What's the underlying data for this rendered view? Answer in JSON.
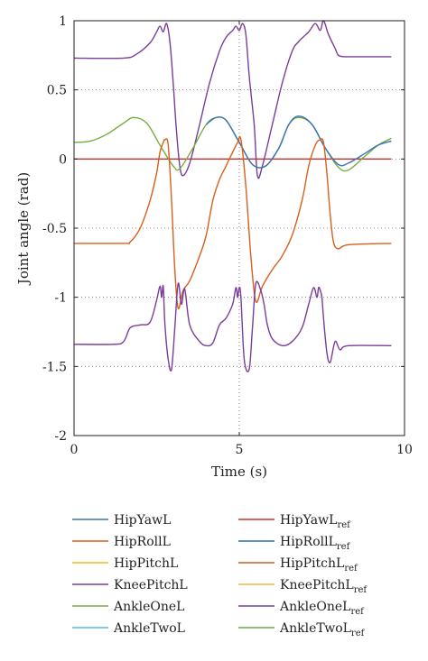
{
  "chart_data": {
    "type": "line",
    "title": "",
    "xlabel": "Time (s)",
    "ylabel": "Joint angle (rad)",
    "xlim": [
      0,
      10
    ],
    "ylim": [
      -2,
      1
    ],
    "xticks": [
      0,
      5,
      10
    ],
    "xtick_labels": [
      "0",
      "5",
      "10"
    ],
    "yticks": [
      1,
      0.5,
      0,
      -0.5,
      -1,
      -1.5,
      -2
    ],
    "ytick_labels": [
      "1",
      "0.5",
      "0",
      "-0.5",
      "-1",
      "-1.5",
      "-2"
    ],
    "grid": "dotted at y-ticks and x = 5",
    "legend_placement": "below plot, two columns",
    "legend": [
      {
        "base": "HipYawL",
        "sub": "",
        "color": "#3b73b9"
      },
      {
        "base": "HipRollL",
        "sub": "",
        "color": "#d95f1a"
      },
      {
        "base": "HipPitchL",
        "sub": "",
        "color": "#efb52f"
      },
      {
        "base": "KneePitchL",
        "sub": "",
        "color": "#7a3d9a"
      },
      {
        "base": "AnkleOneL",
        "sub": "",
        "color": "#77ac3e"
      },
      {
        "base": "AnkleTwoL",
        "sub": "",
        "color": "#5cb8e6"
      },
      {
        "base": "HipYawL",
        "sub": "ref",
        "color": "#c9302c"
      },
      {
        "base": "HipRollL",
        "sub": "ref",
        "color": "#2a6db5"
      },
      {
        "base": "HipPitchL",
        "sub": "ref",
        "color": "#c2611e"
      },
      {
        "base": "KneePitchL",
        "sub": "ref",
        "color": "#f0b73a"
      },
      {
        "base": "AnkleOneL",
        "sub": "ref",
        "color": "#7a3d9a"
      },
      {
        "base": "AnkleTwoL",
        "sub": "ref",
        "color": "#6aaa4a"
      }
    ],
    "series": [
      {
        "legend_index": 6,
        "x": [
          0,
          9.6
        ],
        "y": [
          0,
          0
        ]
      },
      {
        "legend_index": 3,
        "x": [
          0,
          1.5,
          1.9,
          2.3,
          2.5,
          2.6,
          2.7,
          2.8,
          2.9,
          3.0,
          3.1,
          3.2,
          3.3,
          3.5,
          3.8,
          4.1,
          4.4,
          4.6,
          4.8,
          4.9,
          5.0,
          5.1,
          5.2,
          5.3,
          5.45,
          5.55,
          5.7,
          6.0,
          6.3,
          6.6,
          6.8,
          7.1,
          7.3,
          7.45,
          7.55,
          7.7,
          7.9,
          8.0,
          8.2,
          8.6,
          9.6
        ],
        "y": [
          0.73,
          0.73,
          0.76,
          0.84,
          0.92,
          0.96,
          0.92,
          0.98,
          0.85,
          0.55,
          0.2,
          -0.05,
          -0.12,
          -0.03,
          0.25,
          0.55,
          0.78,
          0.88,
          0.93,
          0.96,
          0.93,
          0.98,
          0.9,
          0.6,
          0.25,
          -0.12,
          -0.05,
          0.25,
          0.55,
          0.78,
          0.85,
          0.92,
          0.98,
          0.93,
          1.0,
          0.9,
          0.8,
          0.75,
          0.74,
          0.74,
          0.74
        ]
      },
      {
        "legend_index": 4,
        "x": [
          0,
          0.5,
          1.0,
          1.5,
          1.8,
          2.2,
          2.6,
          3.0,
          3.2,
          3.6,
          4.0,
          4.3,
          4.6,
          5.0,
          5.4,
          5.8,
          6.2,
          6.5,
          6.8,
          7.2,
          7.6,
          8.0,
          8.3,
          8.8,
          9.2,
          9.6
        ],
        "y": [
          0.12,
          0.13,
          0.18,
          0.26,
          0.3,
          0.26,
          0.1,
          -0.05,
          -0.07,
          0.08,
          0.25,
          0.3,
          0.28,
          0.12,
          -0.04,
          -0.05,
          0.08,
          0.25,
          0.3,
          0.25,
          0.08,
          -0.06,
          -0.08,
          0.02,
          0.1,
          0.15
        ]
      },
      {
        "legend_index": 0,
        "x": [
          4.0,
          4.3,
          4.6,
          5.0,
          5.4,
          5.8,
          6.2,
          6.5,
          6.8,
          7.2,
          7.6,
          8.0,
          8.3,
          8.8,
          9.2,
          9.6
        ],
        "y": [
          0.25,
          0.3,
          0.28,
          0.12,
          -0.04,
          -0.05,
          0.08,
          0.25,
          0.31,
          0.25,
          0.08,
          -0.04,
          -0.03,
          0.04,
          0.1,
          0.13
        ]
      },
      {
        "legend_index": 1,
        "x": [
          0,
          1.5,
          1.7,
          2.0,
          2.3,
          2.5,
          2.6,
          2.7,
          2.75,
          2.85,
          2.95,
          3.05,
          3.15,
          3.3,
          3.5,
          3.8,
          4.0,
          4.2,
          4.4,
          4.6,
          4.8,
          4.95,
          5.05,
          5.2,
          5.35,
          5.5,
          5.7,
          6.0,
          6.3,
          6.6,
          6.9,
          7.1,
          7.3,
          7.45,
          7.55,
          7.65,
          7.75,
          7.85,
          8.0,
          8.3,
          9.6
        ],
        "y": [
          -0.61,
          -0.61,
          -0.6,
          -0.5,
          -0.3,
          -0.1,
          0.05,
          0.12,
          0.14,
          0.1,
          -0.3,
          -0.8,
          -1.08,
          -0.95,
          -0.88,
          -0.7,
          -0.55,
          -0.3,
          -0.15,
          -0.05,
          0.05,
          0.12,
          0.14,
          -0.2,
          -0.7,
          -1.03,
          -0.92,
          -0.8,
          -0.7,
          -0.55,
          -0.3,
          -0.05,
          0.1,
          0.14,
          0.12,
          -0.1,
          -0.4,
          -0.6,
          -0.65,
          -0.62,
          -0.61
        ]
      },
      {
        "legend_index": 3,
        "x": [
          0,
          1.2,
          1.5,
          1.7,
          2.0,
          2.3,
          2.5,
          2.6,
          2.65,
          2.7,
          2.75,
          2.85,
          2.95,
          3.05,
          3.15,
          3.25,
          3.35,
          3.5,
          3.8,
          4.0,
          4.2,
          4.4,
          4.6,
          4.8,
          4.9,
          4.95,
          5.0,
          5.05,
          5.15,
          5.3,
          5.4,
          5.5,
          5.65,
          5.75,
          5.85,
          6.0,
          6.3,
          6.6,
          6.9,
          7.1,
          7.25,
          7.35,
          7.4,
          7.45,
          7.5,
          7.55,
          7.65,
          7.75,
          7.9,
          8.05,
          8.3,
          9.6
        ],
        "y": [
          -1.34,
          -1.34,
          -1.32,
          -1.22,
          -1.2,
          -1.18,
          -1.02,
          -0.92,
          -1.0,
          -0.92,
          -1.2,
          -1.45,
          -1.52,
          -1.22,
          -0.9,
          -1.05,
          -0.94,
          -1.2,
          -1.32,
          -1.35,
          -1.33,
          -1.2,
          -1.15,
          -1.05,
          -0.93,
          -1.0,
          -0.93,
          -1.0,
          -1.45,
          -1.52,
          -1.22,
          -0.9,
          -0.95,
          -1.05,
          -1.2,
          -1.3,
          -1.35,
          -1.32,
          -1.22,
          -1.05,
          -0.93,
          -1.0,
          -0.93,
          -0.95,
          -1.0,
          -1.15,
          -1.4,
          -1.47,
          -1.32,
          -1.38,
          -1.35,
          -1.35
        ]
      }
    ]
  }
}
